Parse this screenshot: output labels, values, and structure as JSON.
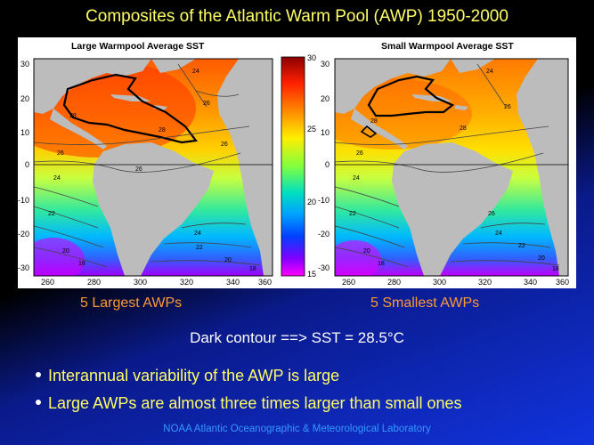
{
  "slide": {
    "title": "Composites of the Atlantic Warm Pool (AWP) 1950-2000",
    "contour_note": "Dark contour ==> SST = 28.5°C",
    "bullets": [
      "Interannual variability of the AWP is large",
      "Large AWPs are almost three times larger than small ones"
    ],
    "footer": "NOAA Atlantic Oceanographic & Meteorological Laboratory",
    "accent_title_color": "#ffff66",
    "accent_caption_color": "#ff9933",
    "accent_footer_color": "#3399ff"
  },
  "figure": {
    "left_panel": {
      "title": "Large Warmpool Average SST",
      "caption": "5 Largest AWPs",
      "contour_labels": [
        "24",
        "26",
        "28",
        "28",
        "26",
        "24",
        "22",
        "20",
        "18",
        "24",
        "22",
        "20",
        "18",
        "26",
        "26"
      ]
    },
    "right_panel": {
      "title": "Small Warmpool Average SST",
      "caption": "5 Smallest AWPs",
      "contour_labels": [
        "24",
        "26",
        "28",
        "28",
        "26",
        "24",
        "22",
        "20",
        "18",
        "26",
        "24",
        "22",
        "20",
        "18"
      ]
    },
    "y_ticks": [
      "30",
      "20",
      "10",
      "0",
      "-10",
      "-20",
      "-30"
    ],
    "x_ticks": [
      "260",
      "280",
      "300",
      "320",
      "340",
      "360"
    ],
    "colorbar": {
      "ticks": [
        "30",
        "25",
        "20",
        "15"
      ],
      "colors": [
        "#8b0000",
        "#ff2000",
        "#ff8c00",
        "#ffee00",
        "#80ff40",
        "#00e0c0",
        "#00a0ff",
        "#0040ff",
        "#8000ff",
        "#ff00ff"
      ]
    }
  }
}
